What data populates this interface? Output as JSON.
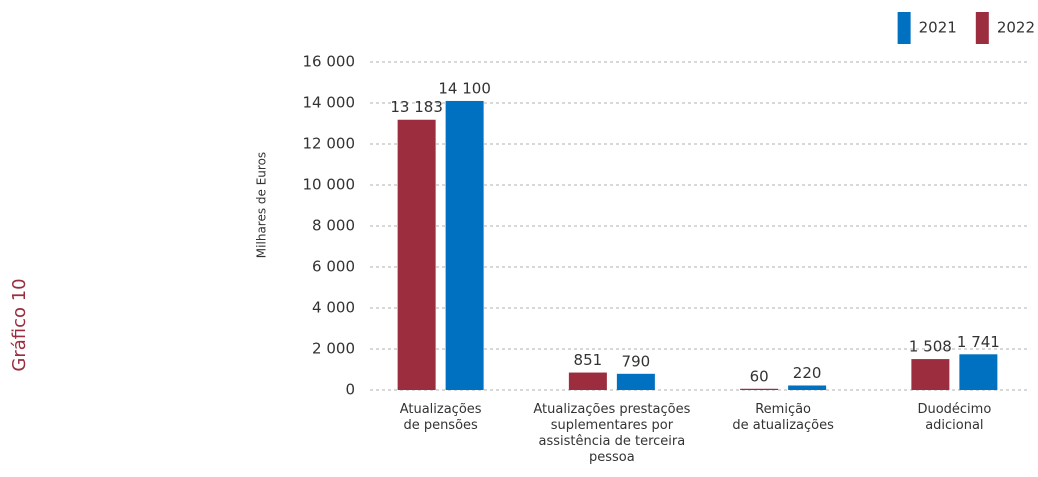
{
  "side_label": "Gráfico 10",
  "chart_data": {
    "type": "bar",
    "ylabel": "Milhares de Euros",
    "categories": [
      "Atualizações\nde pensões",
      "Atualizações prestações\nsuplementares por\nassistência de terceira\npessoa",
      "Remição\nde atualizações",
      "Duodécimo\nadicional"
    ],
    "series": [
      {
        "name": "2022",
        "color": "#9b2d3f",
        "values": [
          13183,
          851,
          60,
          1508
        ],
        "value_labels": [
          "13 183",
          "851",
          "60",
          "1 508"
        ]
      },
      {
        "name": "2021",
        "color": "#0070c0",
        "values": [
          14100,
          790,
          220,
          1741
        ],
        "value_labels": [
          "14 100",
          "790",
          "220",
          "1 741"
        ]
      }
    ],
    "ylim": [
      0,
      16000
    ],
    "yticks": [
      0,
      {
        "value": 2000,
        "label": "2 000"
      },
      {
        "value": 4000,
        "label": "4 000"
      },
      {
        "value": 6000,
        "label": "6 000"
      },
      {
        "value": 8000,
        "label": "8 000"
      },
      {
        "value": 10000,
        "label": "10 000"
      },
      {
        "value": 12000,
        "label": "12 000"
      },
      {
        "value": 14000,
        "label": "14 000"
      },
      {
        "value": 16000,
        "label": "16 000"
      }
    ],
    "grid": true,
    "legend": "top-right"
  }
}
